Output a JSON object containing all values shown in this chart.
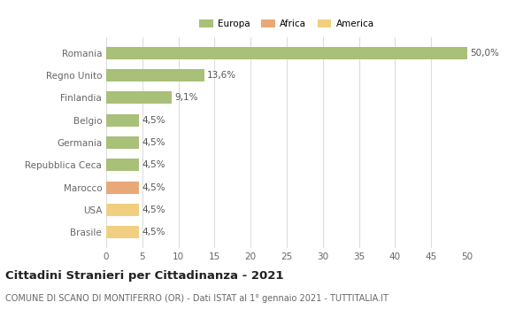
{
  "categories": [
    "Brasile",
    "USA",
    "Marocco",
    "Repubblica Ceca",
    "Germania",
    "Belgio",
    "Finlandia",
    "Regno Unito",
    "Romania"
  ],
  "values": [
    4.5,
    4.5,
    4.5,
    4.5,
    4.5,
    4.5,
    9.1,
    13.6,
    50.0
  ],
  "bar_colors": [
    "#f0d080",
    "#f0d080",
    "#e8a878",
    "#a8c078",
    "#a8c078",
    "#a8c078",
    "#a8c078",
    "#a8c078",
    "#a8c078"
  ],
  "labels": [
    "4,5%",
    "4,5%",
    "4,5%",
    "4,5%",
    "4,5%",
    "4,5%",
    "9,1%",
    "13,6%",
    "50,0%"
  ],
  "legend": [
    {
      "label": "Europa",
      "color": "#a8c078"
    },
    {
      "label": "Africa",
      "color": "#e8a878"
    },
    {
      "label": "America",
      "color": "#f0d080"
    }
  ],
  "xlim": [
    0,
    50
  ],
  "xticks": [
    0,
    5,
    10,
    15,
    20,
    25,
    30,
    35,
    40,
    45,
    50
  ],
  "title": "Cittadini Stranieri per Cittadinanza - 2021",
  "subtitle": "COMUNE DI SCANO DI MONTIFERRO (OR) - Dati ISTAT al 1° gennaio 2021 - TUTTITALIA.IT",
  "background_color": "#ffffff",
  "grid_color": "#dddddd",
  "bar_height": 0.55,
  "label_fontsize": 7.5,
  "title_fontsize": 9.5,
  "subtitle_fontsize": 7.0,
  "tick_fontsize": 7.5,
  "ytick_fontsize": 7.5
}
